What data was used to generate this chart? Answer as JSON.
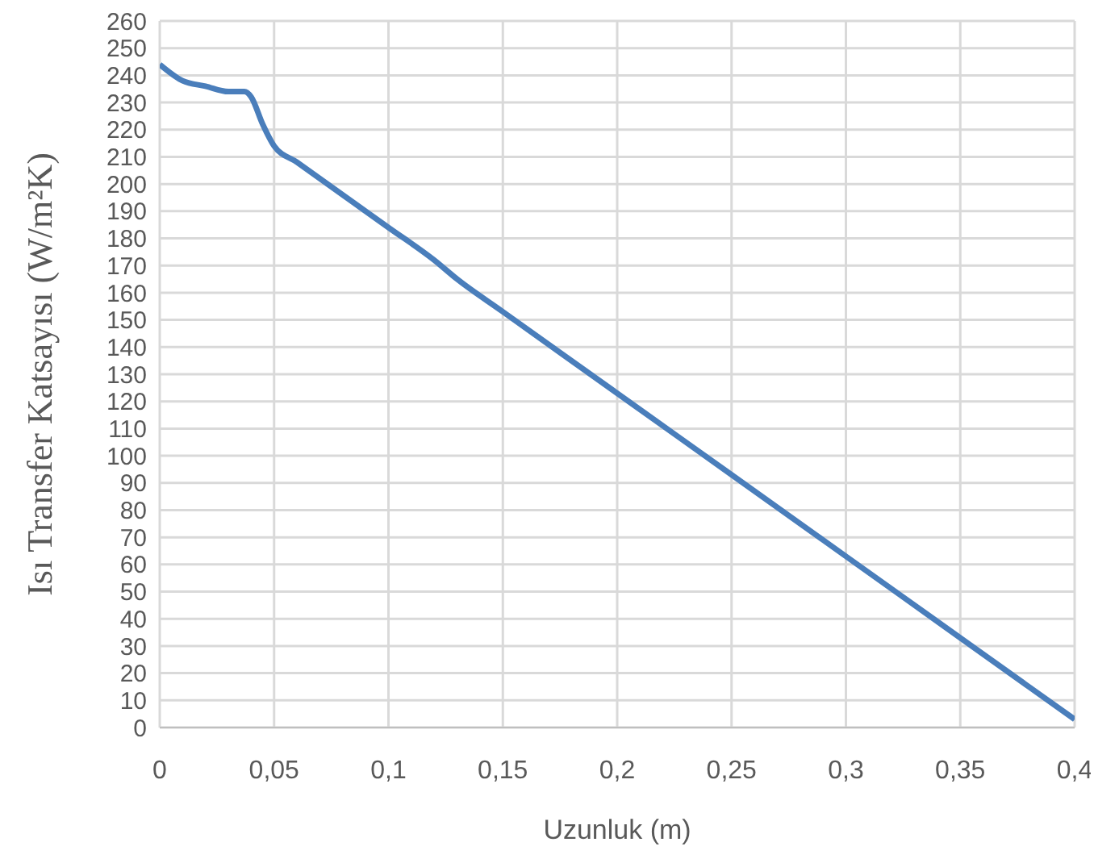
{
  "chart_data": {
    "type": "line",
    "xlabel": "Uzunluk (m)",
    "ylabel": "Isı Transfer Katsayısı (W/m²K)",
    "x": [
      0,
      0.01,
      0.02,
      0.03,
      0.037,
      0.04,
      0.045,
      0.05,
      0.06,
      0.08,
      0.1,
      0.12,
      0.13,
      0.15,
      0.2,
      0.25,
      0.3,
      0.35,
      0.4
    ],
    "series": [
      {
        "color": "#4a7ebb",
        "values": [
          244,
          238,
          236,
          234,
          234,
          232,
          222,
          214,
          208,
          196,
          184,
          172,
          165,
          153,
          123,
          93,
          63,
          33,
          3
        ]
      }
    ],
    "xlim": [
      0,
      0.4
    ],
    "xticks": [
      0,
      {
        "value": 0.05,
        "label": "0,05"
      },
      {
        "value": 0.1,
        "label": "0,1"
      },
      {
        "value": 0.15,
        "label": "0,15"
      },
      {
        "value": 0.2,
        "label": "0,2"
      },
      {
        "value": 0.25,
        "label": "0,25"
      },
      {
        "value": 0.3,
        "label": "0,3"
      },
      {
        "value": 0.35,
        "label": "0,35"
      },
      {
        "value": 0.4,
        "label": "0,4"
      }
    ],
    "ylim": [
      0,
      260
    ],
    "yticks": [
      0,
      10,
      20,
      30,
      40,
      50,
      60,
      70,
      80,
      90,
      100,
      110,
      120,
      130,
      140,
      150,
      160,
      170,
      180,
      190,
      200,
      210,
      220,
      230,
      240,
      250,
      260
    ],
    "grid": true,
    "marker": "none",
    "line_style": "solid"
  }
}
